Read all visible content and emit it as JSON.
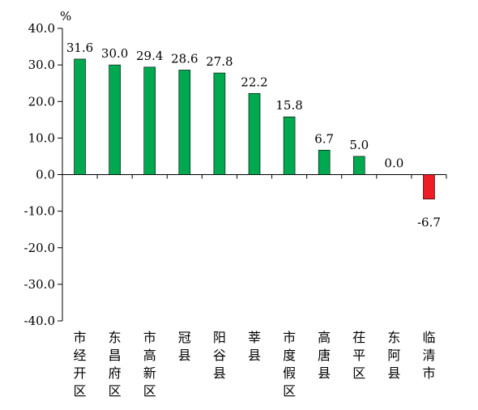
{
  "chart_data": {
    "type": "bar",
    "title": "",
    "xlabel": "",
    "ylabel": "%",
    "ylim": [
      -40,
      40
    ],
    "yticks": [
      "40.0",
      "30.0",
      "20.0",
      "10.0",
      "0.0",
      "-10.0",
      "-20.0",
      "-30.0",
      "-40.0"
    ],
    "categories": [
      "市经开区",
      "东昌府区",
      "市高新区",
      "冠县",
      "阳谷县",
      "莘县",
      "市度假区",
      "高唐县",
      "茌平区",
      "东阿县",
      "临清市"
    ],
    "values": [
      31.6,
      30.0,
      29.4,
      28.6,
      27.8,
      22.2,
      15.8,
      6.7,
      5.0,
      0.0,
      -6.7
    ],
    "value_labels": [
      "31.6",
      "30.0",
      "29.4",
      "28.6",
      "27.8",
      "22.2",
      "15.8",
      "6.7",
      "5.0",
      "0.0",
      "-6.7"
    ],
    "colors": {
      "positive": "#00a84f",
      "negative": "#ee1c24",
      "axis": "#000000"
    },
    "grid": false,
    "legend": "none"
  }
}
